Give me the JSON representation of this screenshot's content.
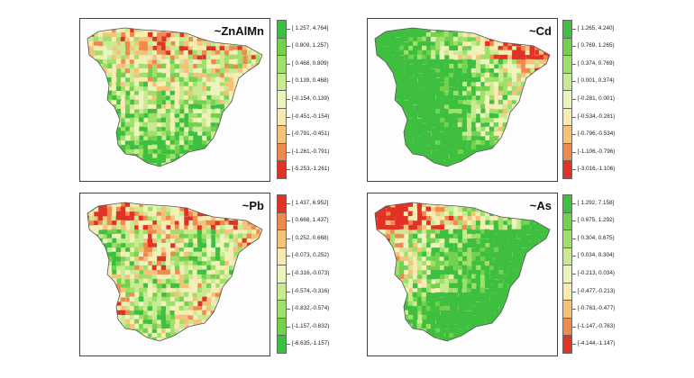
{
  "panels": [
    {
      "title": "~ZnAlMn",
      "legend": [
        {
          "label": "[ 1.257, 4.764]",
          "color": "#3fbf3f"
        },
        {
          "label": "[ 0.809, 1.257)",
          "color": "#73d24d"
        },
        {
          "label": "[ 0.468, 0.809)",
          "color": "#9fe06a"
        },
        {
          "label": "[ 0.139, 0.468)",
          "color": "#c8eb92"
        },
        {
          "label": "[-0.154, 0.139)",
          "color": "#ecf4bd"
        },
        {
          "label": "[-0.451,-0.154)",
          "color": "#f8eab0"
        },
        {
          "label": "[-0.791,-0.451)",
          "color": "#f6c27a"
        },
        {
          "label": "[-1.261,-0.791)",
          "color": "#ef8a4f"
        },
        {
          "label": "[-5.253,-1.261)",
          "color": "#e03325"
        }
      ],
      "pattern": "north-red"
    },
    {
      "title": "~Cd",
      "legend": [
        {
          "label": "[ 1.265, 4.240]",
          "color": "#3fbf3f"
        },
        {
          "label": "[ 0.769, 1.265)",
          "color": "#73d24d"
        },
        {
          "label": "[ 0.374, 0.769)",
          "color": "#9fe06a"
        },
        {
          "label": "[ 0.001, 0.374)",
          "color": "#c8eb92"
        },
        {
          "label": "[-0.281, 0.001)",
          "color": "#ecf4bd"
        },
        {
          "label": "[-0.534,-0.281)",
          "color": "#f8eab0"
        },
        {
          "label": "[-0.796,-0.534)",
          "color": "#f6c27a"
        },
        {
          "label": "[-1.106,-0.796)",
          "color": "#ef8a4f"
        },
        {
          "label": "[-3.016,-1.106)",
          "color": "#e03325"
        }
      ],
      "pattern": "east-red"
    },
    {
      "title": "~Pb",
      "legend": [
        {
          "label": "[ 1.437, 6.952]",
          "color": "#e03325"
        },
        {
          "label": "[ 0.668, 1.437)",
          "color": "#ef8a4f"
        },
        {
          "label": "[ 0.252, 0.668)",
          "color": "#f6c27a"
        },
        {
          "label": "[-0.073, 0.252)",
          "color": "#f8eab0"
        },
        {
          "label": "[-0.316,-0.073)",
          "color": "#ecf4bd"
        },
        {
          "label": "[-0.574,-0.316)",
          "color": "#c8eb92"
        },
        {
          "label": "[-0.832,-0.574)",
          "color": "#9fe06a"
        },
        {
          "label": "[-1.157,-0.832)",
          "color": "#73d24d"
        },
        {
          "label": "[-6.635,-1.157)",
          "color": "#3fbf3f"
        }
      ],
      "pattern": "scatter-red"
    },
    {
      "title": "~As",
      "legend": [
        {
          "label": "[ 1.292, 7.158]",
          "color": "#3fbf3f"
        },
        {
          "label": "[ 0.675, 1.292)",
          "color": "#73d24d"
        },
        {
          "label": "[ 0.304, 0.675)",
          "color": "#9fe06a"
        },
        {
          "label": "[ 0.034, 0.304)",
          "color": "#c8eb92"
        },
        {
          "label": "[-0.213, 0.034)",
          "color": "#ecf4bd"
        },
        {
          "label": "[-0.477,-0.213)",
          "color": "#f8eab0"
        },
        {
          "label": "[-0.763,-0.477)",
          "color": "#f6c27a"
        },
        {
          "label": "[-1.147,-0.763)",
          "color": "#ef8a4f"
        },
        {
          "label": "[-4.144,-1.147)",
          "color": "#e03325"
        }
      ],
      "pattern": "west-red"
    }
  ]
}
